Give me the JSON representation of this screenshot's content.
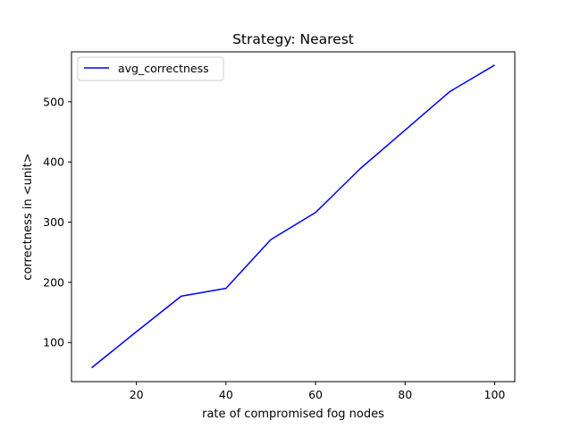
{
  "chart_data": {
    "type": "line",
    "title": "Strategy: Nearest",
    "xlabel": "rate of compromised fog nodes",
    "ylabel": "correctness in <unit>",
    "xlim": [
      5.5,
      104.5
    ],
    "ylim": [
      35,
      583
    ],
    "xticks": [
      20,
      40,
      60,
      80,
      100
    ],
    "yticks": [
      100,
      200,
      300,
      400,
      500
    ],
    "grid": false,
    "legend_position": "top-left",
    "series": [
      {
        "name": "avg_correctness",
        "color": "#0000ff",
        "x": [
          10,
          20,
          30,
          40,
          50,
          60,
          70,
          80,
          90,
          100
        ],
        "y": [
          58,
          118,
          177,
          190,
          271,
          316,
          389,
          453,
          517,
          561
        ]
      }
    ]
  }
}
